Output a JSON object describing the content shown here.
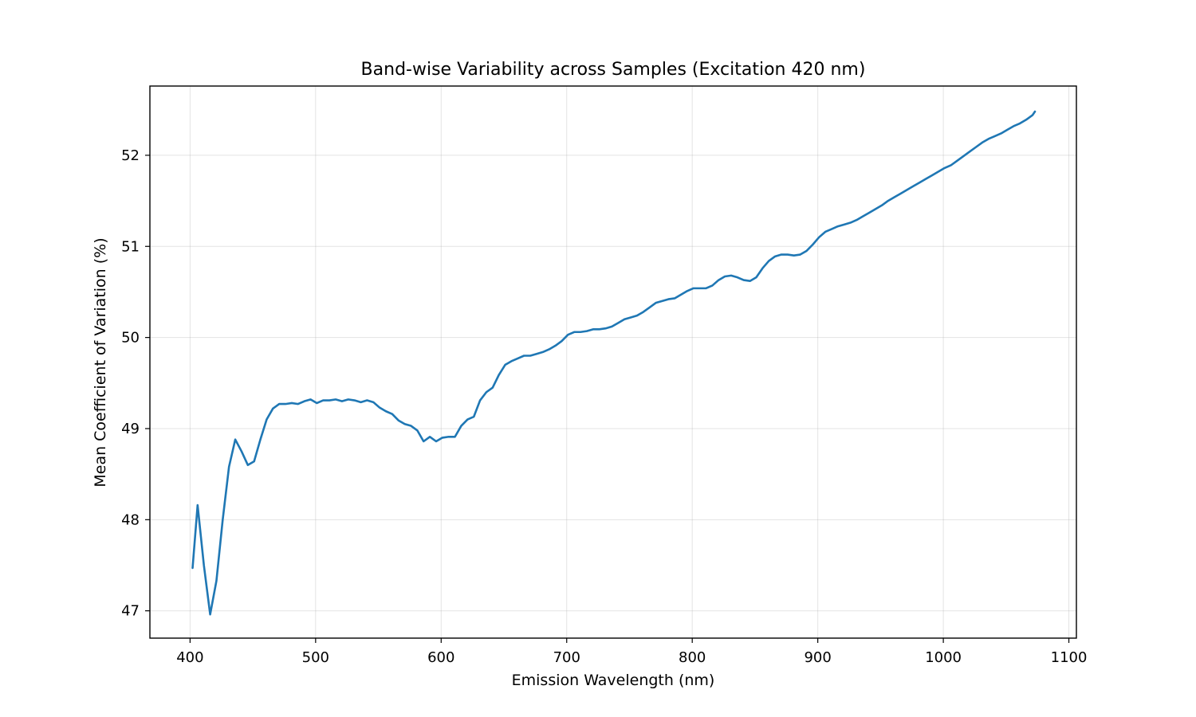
{
  "chart_data": {
    "type": "line",
    "title": "Band-wise Variability across Samples (Excitation 420 nm)",
    "xlabel": "Emission Wavelength (nm)",
    "ylabel": "Mean Coefficient of Variation (%)",
    "xlim": [
      368,
      1106
    ],
    "ylim": [
      46.7,
      52.76
    ],
    "xticks": [
      400,
      500,
      600,
      700,
      800,
      900,
      1000,
      1100
    ],
    "yticks": [
      47,
      48,
      49,
      50,
      51,
      52
    ],
    "grid": true,
    "colors": {
      "series": "#1f77b4"
    },
    "series": [
      {
        "x": [
          402,
          406,
          411,
          416,
          421,
          426,
          431,
          436,
          441,
          446,
          451,
          456,
          461,
          466,
          471,
          476,
          481,
          486,
          491,
          496,
          501,
          506,
          511,
          516,
          521,
          526,
          531,
          536,
          541,
          546,
          551,
          556,
          561,
          566,
          571,
          576,
          581,
          586,
          591,
          596,
          601,
          606,
          611,
          616,
          621,
          626,
          631,
          636,
          641,
          646,
          651,
          656,
          661,
          666,
          671,
          676,
          681,
          686,
          691,
          696,
          701,
          706,
          711,
          716,
          721,
          726,
          731,
          736,
          741,
          746,
          751,
          756,
          761,
          766,
          771,
          776,
          781,
          786,
          791,
          796,
          801,
          806,
          811,
          816,
          821,
          826,
          831,
          836,
          841,
          846,
          851,
          856,
          861,
          866,
          871,
          876,
          881,
          886,
          891,
          896,
          901,
          906,
          911,
          916,
          921,
          926,
          931,
          936,
          941,
          946,
          951,
          956,
          961,
          966,
          971,
          976,
          981,
          986,
          991,
          996,
          1001,
          1006,
          1011,
          1016,
          1021,
          1026,
          1031,
          1036,
          1041,
          1046,
          1051,
          1056,
          1061,
          1066,
          1071,
          1073
        ],
        "values": [
          47.47,
          48.16,
          47.5,
          46.96,
          47.33,
          48.0,
          48.58,
          48.88,
          48.75,
          48.6,
          48.64,
          48.88,
          49.1,
          49.22,
          49.27,
          49.27,
          49.28,
          49.27,
          49.3,
          49.32,
          49.28,
          49.31,
          49.31,
          49.32,
          49.3,
          49.32,
          49.31,
          49.29,
          49.31,
          49.29,
          49.23,
          49.19,
          49.16,
          49.09,
          49.05,
          49.03,
          48.98,
          48.86,
          48.91,
          48.86,
          48.9,
          48.91,
          48.91,
          49.03,
          49.1,
          49.13,
          49.31,
          49.4,
          49.45,
          49.59,
          49.7,
          49.74,
          49.77,
          49.8,
          49.8,
          49.82,
          49.84,
          49.87,
          49.91,
          49.96,
          50.03,
          50.06,
          50.06,
          50.07,
          50.09,
          50.09,
          50.1,
          50.12,
          50.16,
          50.2,
          50.22,
          50.24,
          50.28,
          50.33,
          50.38,
          50.4,
          50.42,
          50.43,
          50.47,
          50.51,
          50.54,
          50.54,
          50.54,
          50.57,
          50.63,
          50.67,
          50.68,
          50.66,
          50.63,
          50.62,
          50.66,
          50.76,
          50.84,
          50.89,
          50.91,
          50.91,
          50.9,
          50.91,
          50.95,
          51.02,
          51.1,
          51.16,
          51.19,
          51.22,
          51.24,
          51.26,
          51.29,
          51.33,
          51.37,
          51.41,
          51.45,
          51.5,
          51.54,
          51.58,
          51.62,
          51.66,
          51.7,
          51.74,
          51.78,
          51.82,
          51.86,
          51.89,
          51.94,
          51.99,
          52.04,
          52.09,
          52.14,
          52.18,
          52.21,
          52.24,
          52.28,
          52.32,
          52.35,
          52.39,
          52.44,
          52.48
        ]
      }
    ]
  }
}
